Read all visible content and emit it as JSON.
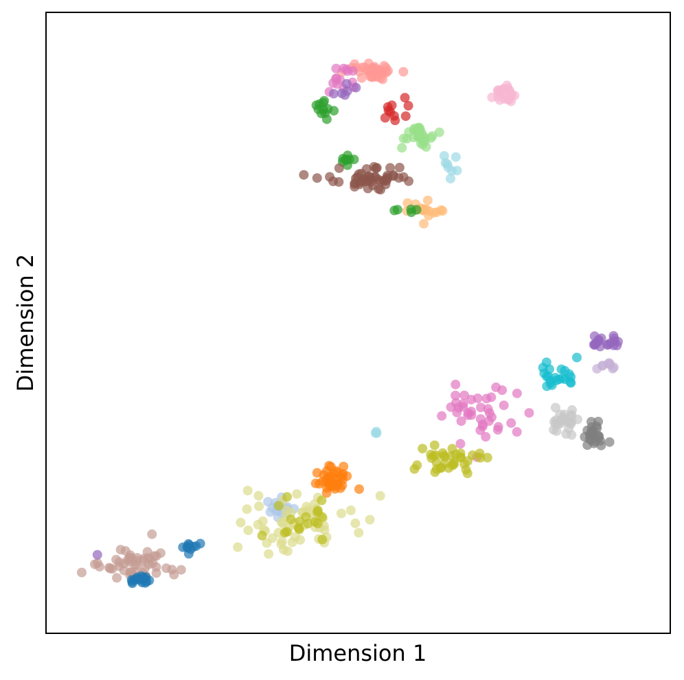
{
  "chart_data": {
    "type": "scatter",
    "title": "",
    "xlabel": "Dimension 1",
    "ylabel": "Dimension 2",
    "xlim": [
      0,
      100
    ],
    "ylim": [
      0,
      100
    ],
    "xticks": [],
    "yticks": [],
    "grid": false,
    "legend": "none",
    "point_alpha": 0.7,
    "clusters": [
      {
        "color": "#ff9896",
        "center": [
          53.0,
          94.0
        ],
        "spread": [
          2.0,
          0.8
        ],
        "count": 40,
        "seed": 1
      },
      {
        "color": "#e377c2",
        "center": [
          46.5,
          92.5
        ],
        "spread": [
          1.5,
          1.5
        ],
        "count": 14,
        "seed": 2
      },
      {
        "color": "#9467bd",
        "center": [
          47.5,
          90.8
        ],
        "spread": [
          1.2,
          0.7
        ],
        "count": 6,
        "seed": 3
      },
      {
        "color": "#2ca02c",
        "center": [
          44.2,
          87.5
        ],
        "spread": [
          0.9,
          0.9
        ],
        "count": 11,
        "seed": 4
      },
      {
        "color": "#d62728",
        "center": [
          55.5,
          87.5
        ],
        "spread": [
          1.5,
          1.5
        ],
        "count": 10,
        "seed": 5
      },
      {
        "color": "#f7b6d2",
        "center": [
          76.0,
          90.0
        ],
        "spread": [
          1.2,
          0.6
        ],
        "count": 22,
        "seed": 6
      },
      {
        "color": "#98df8a",
        "center": [
          61.0,
          82.8
        ],
        "spread": [
          1.5,
          1.2
        ],
        "count": 30,
        "seed": 7
      },
      {
        "color": "#9edae5",
        "center": [
          66.0,
          77.5
        ],
        "spread": [
          0.8,
          1.0
        ],
        "count": 8,
        "seed": 8
      },
      {
        "color": "#2ca02c",
        "center": [
          48.5,
          78.5
        ],
        "spread": [
          0.7,
          0.4
        ],
        "count": 8,
        "seed": 9
      },
      {
        "color": "#8c564b",
        "center": [
          52.0,
          75.0
        ],
        "spread": [
          4.0,
          1.2
        ],
        "count": 50,
        "seed": 10
      },
      {
        "color": "#ffbb78",
        "center": [
          61.5,
          70.0
        ],
        "spread": [
          1.2,
          1.0
        ],
        "count": 18,
        "seed": 11
      },
      {
        "color": "#2ca02c",
        "center": [
          57.5,
          69.7
        ],
        "spread": [
          1.2,
          0.3
        ],
        "count": 5,
        "seed": 12
      },
      {
        "color": "#9467bd",
        "center": [
          93.5,
          46.5
        ],
        "spread": [
          1.5,
          0.6
        ],
        "count": 18,
        "seed": 13
      },
      {
        "color": "#c5b0d5",
        "center": [
          93.5,
          42.5
        ],
        "spread": [
          0.8,
          0.6
        ],
        "count": 8,
        "seed": 14
      },
      {
        "color": "#17becf",
        "center": [
          85.0,
          41.0
        ],
        "spread": [
          2.0,
          1.2
        ],
        "count": 22,
        "seed": 15
      },
      {
        "color": "#e377c2",
        "center": [
          71.5,
          35.0
        ],
        "spread": [
          4.0,
          2.5
        ],
        "count": 40,
        "seed": 16
      },
      {
        "color": "#c7c7c7",
        "center": [
          86.0,
          33.0
        ],
        "spread": [
          1.0,
          1.2
        ],
        "count": 25,
        "seed": 17
      },
      {
        "color": "#7f7f7f",
        "center": [
          91.0,
          30.5
        ],
        "spread": [
          1.3,
          1.0
        ],
        "count": 25,
        "seed": 18
      },
      {
        "color": "#9edae5",
        "center": [
          53.0,
          30.9
        ],
        "spread": [
          0.3,
          0.2
        ],
        "count": 3,
        "seed": 19
      },
      {
        "color": "#bcbd22",
        "center": [
          66.0,
          26.0
        ],
        "spread": [
          3.0,
          1.5
        ],
        "count": 35,
        "seed": 20
      },
      {
        "color": "#ff7f0e",
        "center": [
          45.5,
          22.5
        ],
        "spread": [
          1.5,
          1.0
        ],
        "count": 40,
        "seed": 21
      },
      {
        "color": "#aec7e8",
        "center": [
          36.5,
          17.5
        ],
        "spread": [
          1.3,
          1.2
        ],
        "count": 18,
        "seed": 22
      },
      {
        "color": "#dbdb8d",
        "center": [
          39.0,
          15.0
        ],
        "spread": [
          6.0,
          3.0
        ],
        "count": 60,
        "seed": 23
      },
      {
        "color": "#bcbd22",
        "center": [
          41.0,
          16.0
        ],
        "spread": [
          3.0,
          2.0
        ],
        "count": 18,
        "seed": 24
      },
      {
        "color": "#c49c94",
        "center": [
          10.5,
          8.0
        ],
        "spread": [
          3.5,
          1.5
        ],
        "count": 50,
        "seed": 25
      },
      {
        "color": "#1f77b4",
        "center": [
          12.5,
          5.0
        ],
        "spread": [
          1.0,
          0.4
        ],
        "count": 16,
        "seed": 26
      },
      {
        "color": "#1f77b4",
        "center": [
          20.5,
          11.0
        ],
        "spread": [
          0.8,
          0.6
        ],
        "count": 10,
        "seed": 27
      },
      {
        "color": "#9467bd",
        "center": [
          4.6,
          9.4
        ],
        "spread": [
          0.2,
          0.2
        ],
        "count": 1,
        "seed": 28
      }
    ]
  }
}
